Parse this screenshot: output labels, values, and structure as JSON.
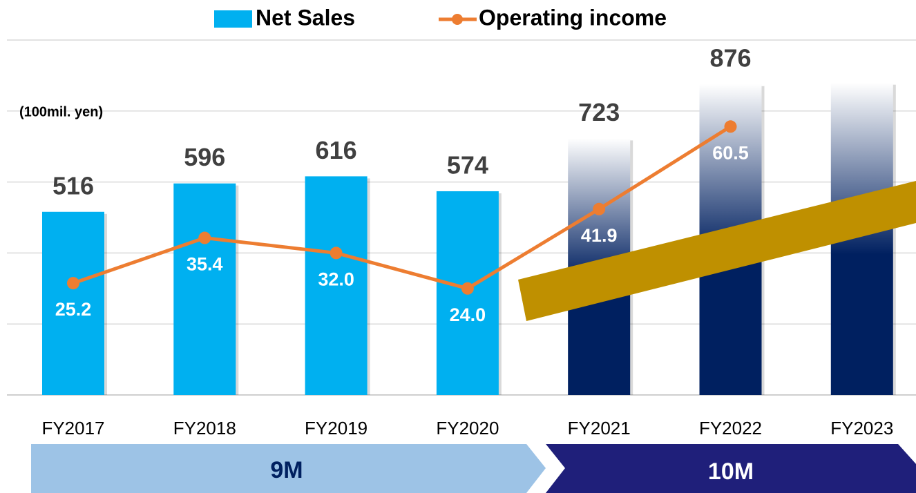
{
  "chart_data": {
    "type": "bar_line",
    "unit_label": "(100mil. yen)",
    "categories": [
      "FY2017",
      "FY2018",
      "FY2019",
      "FY2020",
      "FY2021",
      "FY2022",
      "FY2023"
    ],
    "series": [
      {
        "name": "Net Sales",
        "color": "#00b0f0",
        "values": [
          516,
          596,
          616,
          574,
          723,
          876,
          880
        ],
        "value_labels": [
          "516",
          "596",
          "616",
          "574",
          "723",
          "876",
          null
        ],
        "bar_colors": [
          "#00b0f0",
          "#00b0f0",
          "#00b0f0",
          "#00b0f0",
          "#002060",
          "#002060",
          "#002060"
        ],
        "bar_gradient": [
          false,
          false,
          false,
          false,
          true,
          true,
          true
        ]
      },
      {
        "name": "Operating income",
        "color": "#ed7d31",
        "axis": "y2",
        "values": [
          25.2,
          35.4,
          32.0,
          24.0,
          41.9,
          60.5,
          null
        ],
        "value_labels": [
          "25.2",
          "35.4",
          "32.0",
          "24.0",
          "41.9",
          "60.5",
          null
        ]
      }
    ],
    "ylim": [
      0,
      1000
    ],
    "yticks": [
      0,
      200,
      400,
      600,
      800,
      1000
    ],
    "grid": true,
    "y2lim": [
      0,
      80
    ],
    "periods": [
      {
        "label": "9M",
        "color": "#9dc3e6",
        "text_color": "#002060"
      },
      {
        "label": "10M",
        "color": "#1f1f7a",
        "text_color": "#ffffff"
      }
    ]
  }
}
